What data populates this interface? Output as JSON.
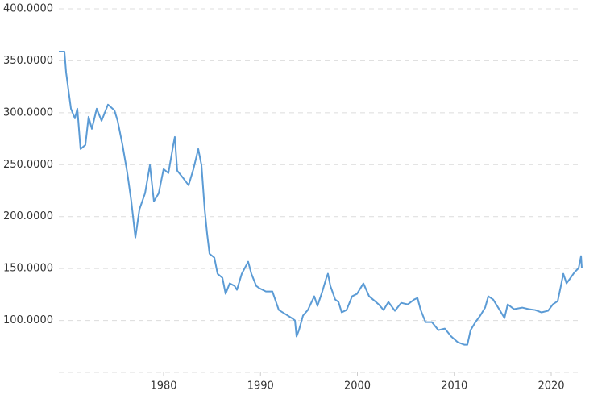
{
  "chart_data": {
    "type": "line",
    "x": [
      1969.19,
      1969.77,
      1969.94,
      1970.44,
      1970.85,
      1971.1,
      1971.43,
      1971.93,
      1972.26,
      1972.6,
      1973.1,
      1973.6,
      1974.26,
      1974.93,
      1975.26,
      1975.76,
      1976.26,
      1976.67,
      1977.09,
      1977.51,
      1978.09,
      1978.59,
      1979.0,
      1979.5,
      1980.0,
      1980.5,
      1981.0,
      1981.16,
      1981.41,
      1982.08,
      1982.58,
      1983.08,
      1983.58,
      1983.91,
      1984.24,
      1984.49,
      1984.74,
      1985.24,
      1985.57,
      1986.07,
      1986.4,
      1986.82,
      1987.32,
      1987.57,
      1988.07,
      1988.73,
      1989.06,
      1989.56,
      1989.9,
      1990.56,
      1991.23,
      1991.89,
      1992.56,
      1993.22,
      1993.56,
      1993.72,
      1993.97,
      1994.39,
      1994.89,
      1995.55,
      1995.88,
      1996.38,
      1996.8,
      1996.96,
      1997.21,
      1997.71,
      1998.05,
      1998.38,
      1998.88,
      1999.46,
      1999.96,
      2000.62,
      2001.21,
      2001.71,
      2002.2,
      2002.7,
      2003.2,
      2003.87,
      2004.53,
      2005.2,
      2005.86,
      2006.2,
      2006.53,
      2007.03,
      2007.69,
      2008.36,
      2009.02,
      2009.69,
      2010.35,
      2011.02,
      2011.35,
      2011.68,
      2012.18,
      2012.68,
      2013.18,
      2013.51,
      2014.01,
      2014.68,
      2015.18,
      2015.51,
      2016.17,
      2017.01,
      2017.67,
      2018.34,
      2019.0,
      2019.67,
      2020.17,
      2020.67,
      2021.0,
      2021.25,
      2021.58,
      2022.0,
      2022.41,
      2022.83,
      2023.08,
      2023.16
    ],
    "series": [
      {
        "color": "#5b9bd5",
        "values": [
          358.9,
          358.9,
          338.8,
          303.9,
          294.6,
          303.9,
          265.1,
          269,
          296.1,
          284.5,
          303.9,
          292.2,
          307.8,
          302.3,
          292.2,
          269,
          241.9,
          214.7,
          179.8,
          207,
          222.5,
          249.6,
          214.7,
          222.5,
          245.7,
          241.9,
          269,
          276.7,
          244.2,
          236.4,
          230.2,
          245.7,
          265.1,
          249.6,
          207,
          183.7,
          164.3,
          160.5,
          145,
          141.1,
          125.6,
          135.7,
          133.3,
          129.5,
          145,
          156.6,
          145,
          133.3,
          131,
          127.9,
          127.9,
          110.1,
          106.2,
          102.3,
          100,
          84.5,
          90.7,
          104.7,
          110.1,
          123.3,
          114,
          127.9,
          141.1,
          145,
          133.3,
          120.2,
          117.8,
          107.8,
          110.1,
          123.3,
          125.6,
          135.7,
          123.3,
          119.4,
          115.5,
          110.1,
          117.8,
          109.3,
          117,
          115.5,
          120.2,
          121.7,
          110.1,
          98.4,
          98.4,
          90.7,
          92.2,
          84.5,
          79.1,
          76.7,
          76.7,
          90.7,
          98.4,
          104.7,
          112.4,
          123.3,
          120.2,
          110.1,
          102.3,
          115.5,
          110.9,
          112.4,
          110.9,
          110.1,
          107.8,
          109.3,
          115.5,
          118.6,
          133.3,
          145,
          135.7,
          141.1,
          146.5,
          150.4,
          162,
          150.4
        ]
      }
    ],
    "xlim": [
      1969.19,
      2023.16
    ],
    "xticks": [
      1980,
      1990,
      2000,
      2010,
      2020
    ],
    "ylim": [
      50,
      400
    ],
    "yticks": [
      {
        "value": 100,
        "label": "100.0000"
      },
      {
        "value": 150,
        "label": "150.0000"
      },
      {
        "value": 200,
        "label": "200.0000"
      },
      {
        "value": 250,
        "label": "250.0000"
      },
      {
        "value": 300,
        "label": "300.0000"
      },
      {
        "value": 350,
        "label": "350.0000"
      },
      {
        "value": 400,
        "label": "400.0000"
      }
    ],
    "grid": true
  }
}
